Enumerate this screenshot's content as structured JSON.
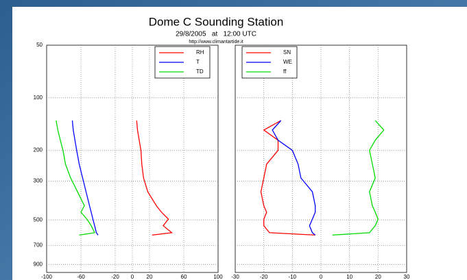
{
  "header": {
    "title": "Dome C Sounding Station",
    "subtitle": "29/8/2005   at   12:00 UTC",
    "url": "http://www.climantartide.it"
  },
  "chart_data": [
    {
      "type": "line",
      "yscale": "log",
      "ylim": [
        1000,
        50
      ],
      "yticks": [
        50,
        100,
        200,
        300,
        500,
        700,
        900
      ],
      "xlim": [
        -100,
        100
      ],
      "xticks": [
        -100,
        -60,
        -20,
        0,
        20,
        60,
        100
      ],
      "grid": true,
      "legend": "upper right",
      "y": [
        135,
        153,
        175,
        200,
        240,
        288,
        345,
        415,
        452,
        495,
        540,
        592,
        611
      ],
      "series": [
        {
          "name": "RH",
          "color": "#ff0000",
          "values": [
            5,
            6,
            8,
            10,
            11,
            13,
            18,
            28,
            34,
            42,
            36,
            46,
            23
          ]
        },
        {
          "name": "T",
          "color": "#0000ff",
          "values": [
            -70,
            -69,
            -67,
            -65,
            -62,
            -58,
            -54,
            -50,
            -48,
            -46,
            -44,
            -42,
            -40
          ]
        },
        {
          "name": "TD",
          "color": "#00dd00",
          "values": [
            -89,
            -87,
            -84,
            -81,
            -78,
            -72,
            -64,
            -56,
            -60,
            -53,
            -48,
            -44,
            -62
          ]
        }
      ]
    },
    {
      "type": "line",
      "yscale": "log",
      "ylim": [
        1000,
        50
      ],
      "xlim": [
        -30,
        30
      ],
      "xticks": [
        -30,
        -20,
        -10,
        0,
        10,
        20,
        30
      ],
      "grid": true,
      "legend": "upper left",
      "y": [
        135,
        153,
        175,
        200,
        240,
        288,
        345,
        415,
        452,
        495,
        540,
        592,
        611
      ],
      "series": [
        {
          "name": "SN",
          "color": "#ff0000",
          "values": [
            -14,
            -20,
            -15,
            -15,
            -19,
            -20,
            -21,
            -20,
            -19,
            -20,
            -20,
            -18,
            -2
          ]
        },
        {
          "name": "WE",
          "color": "#0000ff",
          "values": [
            -14,
            -17,
            -15,
            -10,
            -8,
            -7,
            -3,
            -2,
            -2,
            -3,
            -4,
            -3,
            -2
          ]
        },
        {
          "name": "ff",
          "color": "#00dd00",
          "values": [
            19,
            22,
            19,
            17,
            18,
            19,
            17,
            18,
            19,
            20,
            19,
            17,
            4
          ]
        }
      ]
    }
  ]
}
